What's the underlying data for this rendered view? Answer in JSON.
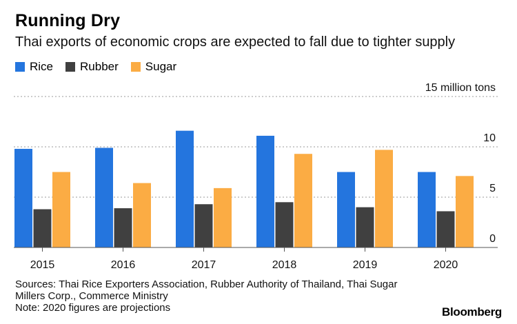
{
  "header": {
    "title": "Running Dry",
    "subtitle": "Thai exports of economic crops are expected to fall due to tighter supply"
  },
  "chart_data": {
    "type": "bar",
    "categories": [
      "2015",
      "2016",
      "2017",
      "2018",
      "2019",
      "2020"
    ],
    "series": [
      {
        "name": "Rice",
        "color": "#2475de",
        "values": [
          9.8,
          9.9,
          11.6,
          11.1,
          7.5,
          7.5
        ]
      },
      {
        "name": "Rubber",
        "color": "#404040",
        "values": [
          3.8,
          3.9,
          4.3,
          4.5,
          4.0,
          3.6
        ]
      },
      {
        "name": "Sugar",
        "color": "#fbac44",
        "values": [
          7.5,
          6.4,
          5.9,
          9.3,
          9.7,
          7.1
        ]
      }
    ],
    "ylim": [
      0,
      15
    ],
    "yticks": [
      {
        "value": 0,
        "label": "0"
      },
      {
        "value": 5,
        "label": "5"
      },
      {
        "value": 10,
        "label": "10"
      },
      {
        "value": 15,
        "label": "15 million tons"
      }
    ],
    "grid": true,
    "legend_position": "top-left"
  },
  "footer": {
    "sources_line1": "Sources: Thai Rice Exporters Association, Rubber Authority of Thailand, Thai Sugar",
    "sources_line2": "Millers Corp., Commerce Ministry",
    "note": "Note: 2020 figures are projections",
    "brand": "Bloomberg"
  }
}
